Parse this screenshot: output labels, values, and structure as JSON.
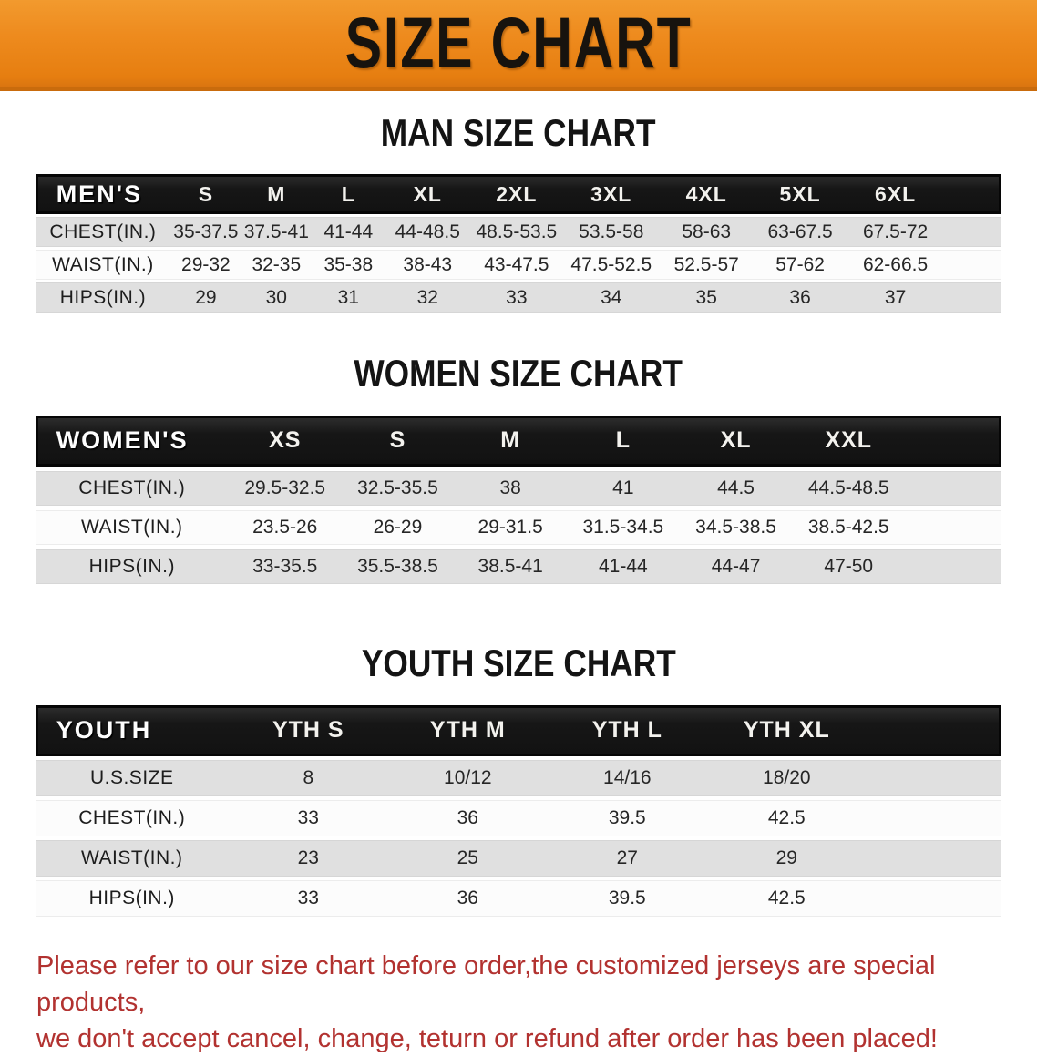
{
  "banner": {
    "title": "SIZE CHART",
    "bg_color": "#ee8b1e",
    "text_color": "#17130e"
  },
  "sections": [
    {
      "heading": "MAN SIZE CHART",
      "header_label": "MEN'S",
      "columns": [
        "S",
        "M",
        "L",
        "XL",
        "2XL",
        "3XL",
        "4XL",
        "5XL",
        "6XL"
      ],
      "rows": [
        {
          "label": "CHEST(IN.)",
          "values": [
            "35-37.5",
            "37.5-41",
            "41-44",
            "44-48.5",
            "48.5-53.5",
            "53.5-58",
            "58-63",
            "63-67.5",
            "67.5-72"
          ]
        },
        {
          "label": "WAIST(IN.)",
          "values": [
            "29-32",
            "32-35",
            "35-38",
            "38-43",
            "43-47.5",
            "47.5-52.5",
            "52.5-57",
            "57-62",
            "62-66.5"
          ]
        },
        {
          "label": "HIPS(IN.)",
          "values": [
            "29",
            "30",
            "31",
            "32",
            "33",
            "34",
            "35",
            "36",
            "37"
          ]
        }
      ]
    },
    {
      "heading": "WOMEN SIZE CHART",
      "header_label": "WOMEN'S",
      "columns": [
        "XS",
        "S",
        "M",
        "L",
        "XL",
        "XXL"
      ],
      "rows": [
        {
          "label": "CHEST(IN.)",
          "values": [
            "29.5-32.5",
            "32.5-35.5",
            "38",
            "41",
            "44.5",
            "44.5-48.5"
          ]
        },
        {
          "label": "WAIST(IN.)",
          "values": [
            "23.5-26",
            "26-29",
            "29-31.5",
            "31.5-34.5",
            "34.5-38.5",
            "38.5-42.5"
          ]
        },
        {
          "label": "HIPS(IN.)",
          "values": [
            "33-35.5",
            "35.5-38.5",
            "38.5-41",
            "41-44",
            "44-47",
            "47-50"
          ]
        }
      ]
    },
    {
      "heading": "YOUTH SIZE CHART",
      "header_label": "YOUTH",
      "columns": [
        "YTH S",
        "YTH M",
        "YTH L",
        "YTH XL"
      ],
      "rows": [
        {
          "label": "U.S.SIZE",
          "values": [
            "8",
            "10/12",
            "14/16",
            "18/20"
          ]
        },
        {
          "label": "CHEST(IN.)",
          "values": [
            "33",
            "36",
            "39.5",
            "42.5"
          ]
        },
        {
          "label": "WAIST(IN.)",
          "values": [
            "23",
            "25",
            "27",
            "29"
          ]
        },
        {
          "label": "HIPS(IN.)",
          "values": [
            "33",
            "36",
            "39.5",
            "42.5"
          ]
        }
      ]
    }
  ],
  "disclaimer": {
    "line1": "Please refer to our size chart before order,the customized jerseys are special products,",
    "line2": "we don't accept cancel, change, teturn or refund after order has been placed!",
    "text_color": "#b23230"
  }
}
